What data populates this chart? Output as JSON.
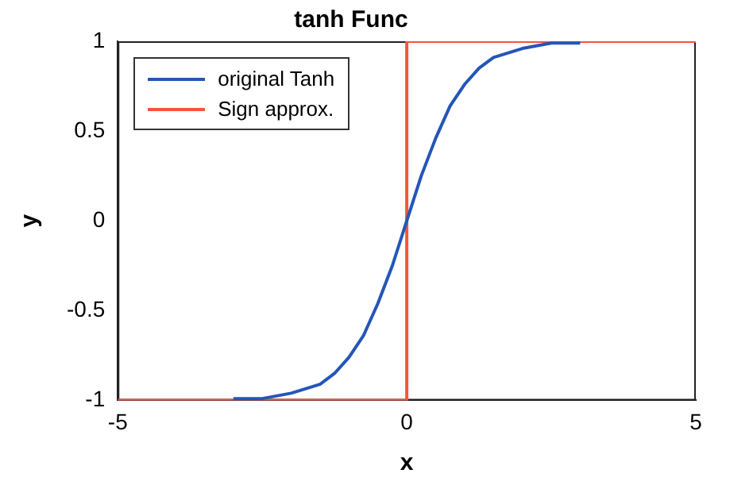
{
  "chart_data": {
    "type": "line",
    "title": "tanh Func",
    "xlabel": "x",
    "ylabel": "y",
    "xlim": [
      -5,
      5
    ],
    "xticks": [
      -5,
      0,
      5
    ],
    "ylim": [
      -1,
      1
    ],
    "yticks": [
      -1,
      -0.5,
      0,
      0.5,
      1
    ],
    "grid": false,
    "legend": "top left",
    "marker": "none",
    "line_style": "solid",
    "series": [
      {
        "name": "original Tanh",
        "color": "#2456b8",
        "x": [
          -3,
          -2.5,
          -2,
          -1.5,
          -1.25,
          -1,
          -0.75,
          -0.5,
          -0.25,
          0,
          0.25,
          0.5,
          0.75,
          1,
          1.25,
          1.5,
          2,
          2.5,
          3
        ],
        "values": [
          -0.99,
          -0.99,
          -0.96,
          -0.91,
          -0.85,
          -0.76,
          -0.64,
          -0.46,
          -0.25,
          0,
          0.25,
          0.46,
          0.64,
          0.76,
          0.85,
          0.91,
          0.96,
          0.99,
          0.99
        ]
      },
      {
        "name": "Sign approx.",
        "color": "#f5543a",
        "x": [
          -5,
          0,
          0,
          5
        ],
        "values": [
          -1,
          -1,
          1,
          1
        ]
      }
    ]
  }
}
